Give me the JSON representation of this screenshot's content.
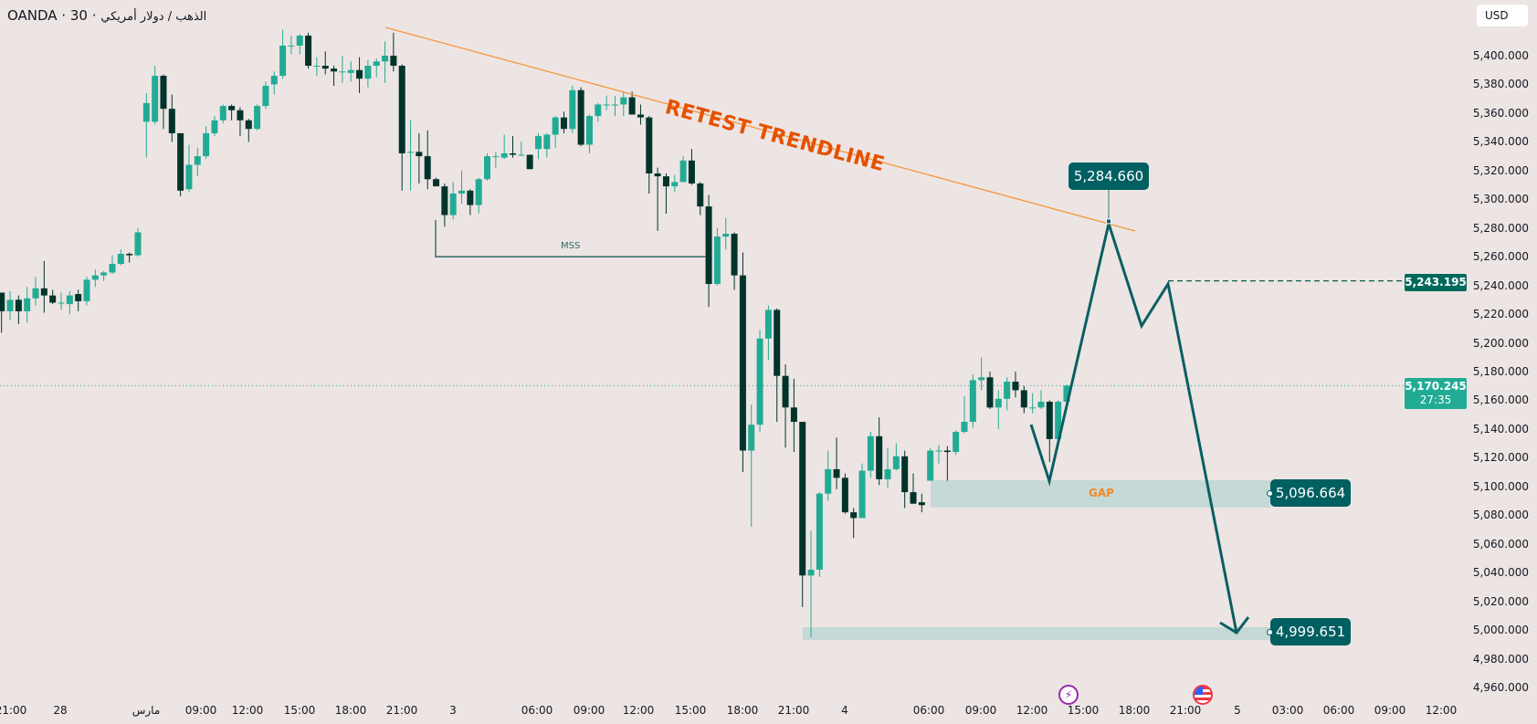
{
  "header": {
    "broker": "OANDA",
    "interval": "30",
    "symbol_name": "الذهب / دولار أمريكي",
    "currency_button": "USD"
  },
  "colors": {
    "background": "#ede5e3",
    "bull": "#22ab94",
    "bear": "#00332b",
    "trendline": "#f7953b",
    "annotation_text": "#e65100",
    "projection": "#0b5f63",
    "zone": "#c5d9d6",
    "label_box": "#005f61",
    "last_price": "#22ab94"
  },
  "annotations": {
    "trendline_text": "RETEST TRENDLINE",
    "mss_text": "MSS",
    "gap_text": "GAP",
    "target_high_label": "5,284.660",
    "gap_label": "5,096.664",
    "target_low_label": "4,999.651"
  },
  "price_axis": {
    "horizontal_line_label": "5,243.195",
    "last_price": "5,170.245",
    "countdown": "27:35"
  },
  "events": [
    {
      "icon": "lightning-icon"
    },
    {
      "icon": "us-flag-icon"
    }
  ],
  "chart_data": {
    "type": "candlestick",
    "y_ticks": [
      "5,400.000",
      "5,380.000",
      "5,360.000",
      "5,340.000",
      "5,320.000",
      "5,300.000",
      "5,280.000",
      "5,260.000",
      "5,240.000",
      "5,220.000",
      "5,200.000",
      "5,180.000",
      "5,160.000",
      "5,140.000",
      "5,120.000",
      "5,100.000",
      "5,080.000",
      "5,060.000",
      "5,040.000",
      "5,020.000",
      "5,000.000",
      "4,980.000",
      "4,960.000"
    ],
    "y_range": [
      4960,
      5420
    ],
    "x_tick_labels": [
      "21:00",
      "28",
      "مارس",
      "09:00",
      "12:00",
      "15:00",
      "18:00",
      "21:00",
      "3",
      "06:00",
      "09:00",
      "12:00",
      "15:00",
      "18:00",
      "21:00",
      "4",
      "06:00",
      "09:00",
      "12:00",
      "15:00",
      "18:00",
      "21:00",
      "5",
      "03:00",
      "06:00",
      "09:00",
      "12:00"
    ],
    "ohlc_fields": [
      "open",
      "high",
      "low",
      "close"
    ],
    "ohlc": [
      [
        5235,
        5235,
        5207,
        5222
      ],
      [
        5222,
        5236,
        5216,
        5230
      ],
      [
        5230,
        5233,
        5213,
        5222
      ],
      [
        5222,
        5239,
        5214,
        5231
      ],
      [
        5231,
        5246,
        5226,
        5238
      ],
      [
        5238,
        5257,
        5221,
        5233
      ],
      [
        5233,
        5237,
        5227,
        5228
      ],
      [
        5228,
        5235,
        5223,
        5228
      ],
      [
        5227,
        5236,
        5220,
        5233
      ],
      [
        5234,
        5237,
        5222,
        5229
      ],
      [
        5229,
        5246,
        5226,
        5244
      ],
      [
        5244,
        5251,
        5239,
        5247
      ],
      [
        5247,
        5250,
        5243,
        5249
      ],
      [
        5249,
        5261,
        5248,
        5255
      ],
      [
        5255,
        5265,
        5254,
        5262
      ],
      [
        5262,
        5263,
        5256,
        5261
      ],
      [
        5261,
        5280,
        5260,
        5277
      ],
      [
        5354,
        5374,
        5329,
        5367
      ],
      [
        5354,
        5393,
        5352,
        5386
      ],
      [
        5386,
        5387,
        5349,
        5363
      ],
      [
        5363,
        5373,
        5340,
        5346
      ],
      [
        5346,
        5346,
        5302,
        5306
      ],
      [
        5307,
        5338,
        5305,
        5324
      ],
      [
        5324,
        5336,
        5316,
        5330
      ],
      [
        5330,
        5351,
        5328,
        5346
      ],
      [
        5346,
        5358,
        5344,
        5355
      ],
      [
        5355,
        5366,
        5353,
        5365
      ],
      [
        5365,
        5366,
        5355,
        5362
      ],
      [
        5362,
        5364,
        5344,
        5355
      ],
      [
        5355,
        5356,
        5340,
        5349
      ],
      [
        5349,
        5366,
        5348,
        5365
      ],
      [
        5365,
        5382,
        5363,
        5379
      ],
      [
        5380,
        5389,
        5373,
        5386
      ],
      [
        5386,
        5418,
        5384,
        5407
      ],
      [
        5407,
        5414,
        5401,
        5407
      ],
      [
        5407,
        5415,
        5401,
        5414
      ],
      [
        5414,
        5416,
        5391,
        5393
      ],
      [
        5393,
        5399,
        5386,
        5393
      ],
      [
        5393,
        5403,
        5387,
        5391
      ],
      [
        5391,
        5393,
        5379,
        5389
      ],
      [
        5389,
        5400,
        5381,
        5389
      ],
      [
        5388,
        5396,
        5382,
        5390
      ],
      [
        5390,
        5399,
        5374,
        5384
      ],
      [
        5384,
        5397,
        5378,
        5393
      ],
      [
        5393,
        5398,
        5385,
        5396
      ],
      [
        5396,
        5410,
        5381,
        5400
      ],
      [
        5400,
        5416,
        5389,
        5393
      ],
      [
        5393,
        5394,
        5306,
        5332
      ],
      [
        5333,
        5355,
        5306,
        5333
      ],
      [
        5333,
        5346,
        5311,
        5330
      ],
      [
        5330,
        5348,
        5307,
        5314
      ],
      [
        5314,
        5315,
        5309,
        5309
      ],
      [
        5309,
        5311,
        5281,
        5289
      ],
      [
        5289,
        5312,
        5286,
        5304
      ],
      [
        5304,
        5320,
        5297,
        5306
      ],
      [
        5306,
        5307,
        5289,
        5296
      ],
      [
        5296,
        5315,
        5290,
        5314
      ],
      [
        5314,
        5332,
        5313,
        5330
      ],
      [
        5330,
        5333,
        5322,
        5330
      ],
      [
        5329,
        5345,
        5328,
        5332
      ],
      [
        5332,
        5344,
        5329,
        5331
      ],
      [
        5331,
        5340,
        5330,
        5331
      ],
      [
        5331,
        5331,
        5321,
        5321
      ],
      [
        5335,
        5346,
        5328,
        5344
      ],
      [
        5335,
        5346,
        5329,
        5345
      ],
      [
        5345,
        5358,
        5336,
        5357
      ],
      [
        5357,
        5361,
        5346,
        5349
      ],
      [
        5349,
        5379,
        5346,
        5376
      ],
      [
        5376,
        5378,
        5337,
        5338
      ],
      [
        5338,
        5359,
        5332,
        5358
      ],
      [
        5358,
        5367,
        5354,
        5366
      ],
      [
        5366,
        5372,
        5362,
        5366
      ],
      [
        5366,
        5372,
        5358,
        5366
      ],
      [
        5366,
        5375,
        5358,
        5371
      ],
      [
        5371,
        5375,
        5359,
        5359
      ],
      [
        5359,
        5366,
        5352,
        5357
      ],
      [
        5357,
        5358,
        5304,
        5318
      ],
      [
        5318,
        5322,
        5278,
        5316
      ],
      [
        5316,
        5318,
        5290,
        5309
      ],
      [
        5309,
        5317,
        5305,
        5312
      ],
      [
        5312,
        5330,
        5312,
        5327
      ],
      [
        5327,
        5335,
        5310,
        5311
      ],
      [
        5311,
        5312,
        5289,
        5295
      ],
      [
        5295,
        5303,
        5225,
        5241
      ],
      [
        5241,
        5280,
        5240,
        5274
      ],
      [
        5274,
        5287,
        5265,
        5276
      ],
      [
        5276,
        5277,
        5237,
        5247
      ],
      [
        5247,
        5263,
        5110,
        5125
      ],
      [
        5125,
        5157,
        5072,
        5143
      ],
      [
        5143,
        5209,
        5138,
        5203
      ],
      [
        5203,
        5226,
        5188,
        5223
      ],
      [
        5223,
        5224,
        5145,
        5177
      ],
      [
        5177,
        5185,
        5127,
        5155
      ],
      [
        5155,
        5175,
        5124,
        5145
      ],
      [
        5145,
        5145,
        5016,
        5038
      ],
      [
        5038,
        5069,
        4995,
        5042
      ],
      [
        5042,
        5096,
        5037,
        5095
      ],
      [
        5095,
        5125,
        5090,
        5112
      ],
      [
        5112,
        5134,
        5098,
        5106
      ],
      [
        5106,
        5109,
        5081,
        5082
      ],
      [
        5082,
        5085,
        5064,
        5078
      ],
      [
        5078,
        5116,
        5078,
        5111
      ],
      [
        5111,
        5138,
        5106,
        5135
      ],
      [
        5135,
        5148,
        5101,
        5105
      ],
      [
        5105,
        5127,
        5099,
        5112
      ],
      [
        5112,
        5130,
        5111,
        5121
      ],
      [
        5121,
        5125,
        5085,
        5096
      ],
      [
        5096,
        5109,
        5088,
        5088
      ],
      [
        5089,
        5095,
        5082,
        5087
      ],
      [
        5104,
        5127,
        5104,
        5125
      ],
      [
        5125,
        5129,
        5116,
        5125
      ],
      [
        5125,
        5128,
        5104,
        5124
      ],
      [
        5124,
        5139,
        5122,
        5138
      ],
      [
        5138,
        5163,
        5137,
        5145
      ],
      [
        5145,
        5178,
        5141,
        5174
      ],
      [
        5174,
        5190,
        5167,
        5176
      ],
      [
        5176,
        5180,
        5154,
        5155
      ],
      [
        5155,
        5167,
        5140,
        5161
      ],
      [
        5161,
        5176,
        5153,
        5173
      ],
      [
        5173,
        5180,
        5162,
        5167
      ],
      [
        5167,
        5170,
        5151,
        5155
      ],
      [
        5155,
        5165,
        5151,
        5155
      ],
      [
        5155,
        5167,
        5154,
        5159
      ],
      [
        5159,
        5160,
        5117,
        5133
      ],
      [
        5133,
        5160,
        5133,
        5159
      ],
      [
        5159,
        5171,
        5159,
        5170.245
      ]
    ],
    "levels": {
      "mss": 5260,
      "horizontal_line": 5243.195,
      "last_price": 5170.245,
      "gap_zone": [
        5085.3,
        5104.3
      ],
      "low_zone": [
        4993,
        5002
      ],
      "target_high": 5284.66,
      "gap_target": 5096.664,
      "target_low": 4999.651
    }
  }
}
